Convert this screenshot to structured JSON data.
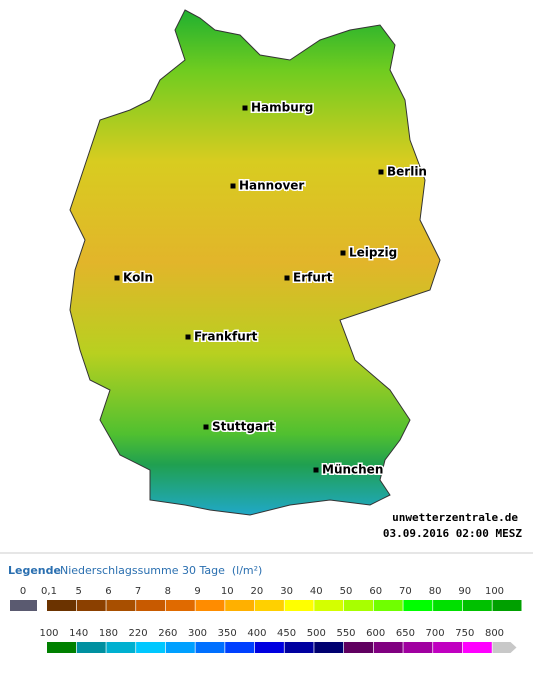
{
  "map": {
    "cities": [
      "Hamburg",
      "Hannover",
      "Berlin",
      "Leipzig",
      "Erfurt",
      "Koln",
      "Frankfurt",
      "Stuttgart",
      "München"
    ],
    "watermark": "unwetterzentrale.de",
    "timestamp": "03.09.2016 02:00 MESZ"
  },
  "legend": {
    "title": "Legende",
    "subtitle": "Niederschlagssumme 30 Tage  (l/m²)",
    "row1": [
      "0",
      "0,1",
      "5",
      "6",
      "7",
      "8",
      "9",
      "10",
      "20",
      "30",
      "40",
      "50",
      "60",
      "70",
      "80",
      "90",
      "100"
    ],
    "row2": [
      "100",
      "140",
      "180",
      "220",
      "260",
      "300",
      "350",
      "400",
      "450",
      "500",
      "550",
      "600",
      "650",
      "700",
      "750",
      "800"
    ]
  }
}
